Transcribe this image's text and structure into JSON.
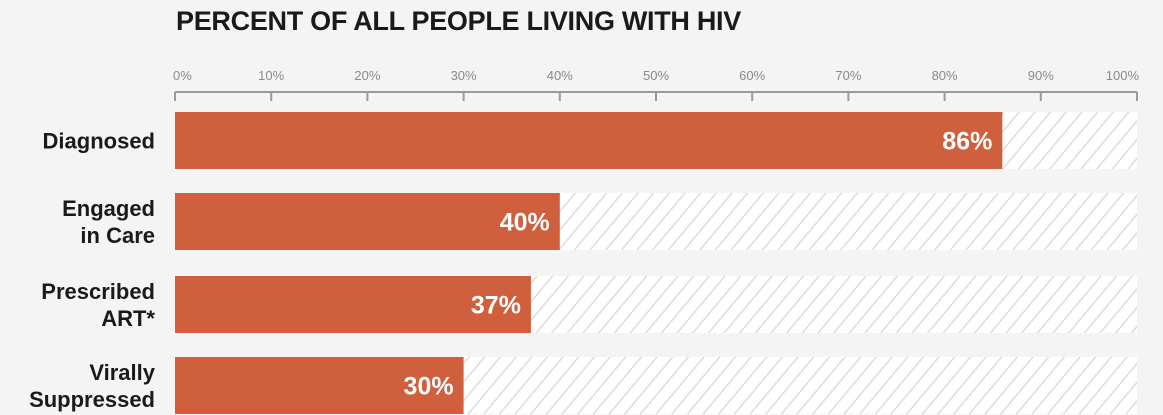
{
  "chart_data": {
    "type": "bar",
    "orientation": "horizontal",
    "title": "PERCENT OF ALL PEOPLE LIVING WITH HIV",
    "categories": [
      [
        "Diagnosed"
      ],
      [
        "Engaged",
        "in Care"
      ],
      [
        "Prescribed",
        "ART*"
      ],
      [
        "Virally",
        "Suppressed"
      ]
    ],
    "values": [
      86,
      40,
      37,
      30
    ],
    "value_labels": [
      "86%",
      "40%",
      "37%",
      "30%"
    ],
    "xlim": [
      0,
      100
    ],
    "tick_values": [
      0,
      10,
      20,
      30,
      40,
      50,
      60,
      70,
      80,
      90,
      100
    ],
    "tick_labels": [
      "0%",
      "10%",
      "20%",
      "30%",
      "40%",
      "50%",
      "60%",
      "70%",
      "80%",
      "90%",
      "100%"
    ],
    "grid": false,
    "remainder_pattern": "hatched",
    "colors": {
      "bar": "#d0603d",
      "remainder_bg": "#ffffff",
      "hatch": "#dcdcdc",
      "axis": "#9a9a9a",
      "background": "#f4f4f4"
    }
  }
}
